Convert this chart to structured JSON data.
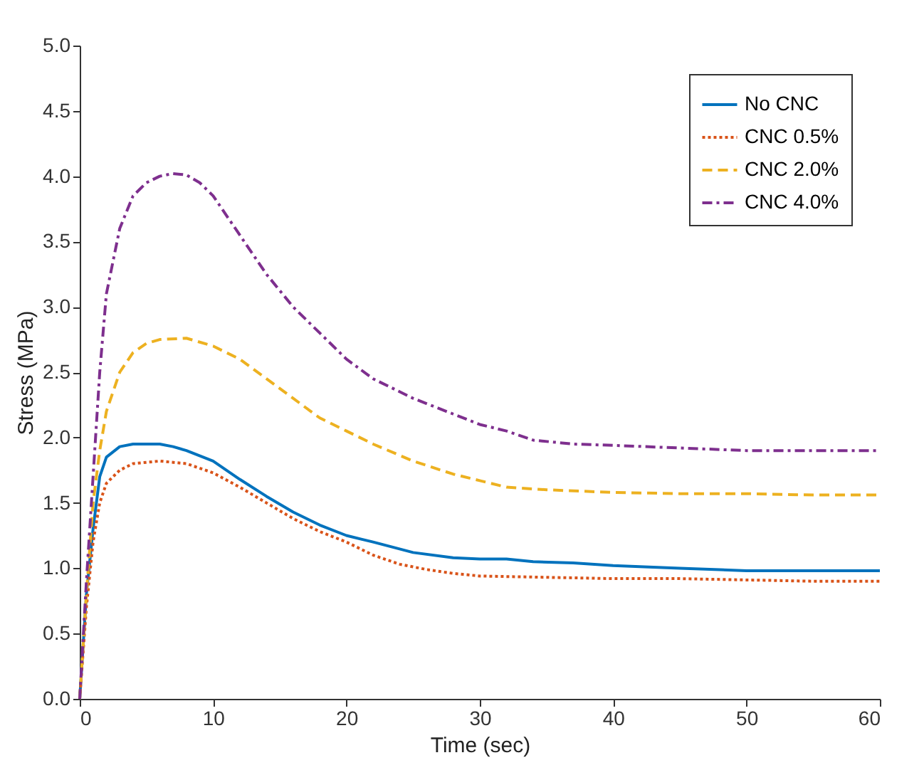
{
  "chart_data": {
    "type": "line",
    "xlabel": "Time (sec)",
    "ylabel": "Stress (MPa)",
    "xlim": [
      0,
      60
    ],
    "ylim": [
      0,
      5
    ],
    "xticks": [
      0,
      10,
      20,
      30,
      40,
      50,
      60
    ],
    "yticks": [
      {
        "value": 0,
        "label": "0.0"
      },
      {
        "value": 0.5,
        "label": "0.5"
      },
      {
        "value": 1,
        "label": "1.0"
      },
      {
        "value": 1.5,
        "label": "1.5"
      },
      {
        "value": 2,
        "label": "2.0"
      },
      {
        "value": 2.5,
        "label": "2.5"
      },
      {
        "value": 3,
        "label": "3.0"
      },
      {
        "value": 3.5,
        "label": "3.5"
      },
      {
        "value": 4,
        "label": "4.0"
      },
      {
        "value": 4.5,
        "label": "4.5"
      },
      {
        "value": 5,
        "label": "5.0"
      }
    ],
    "grid": false,
    "legend": "top right",
    "series": [
      {
        "name": "No CNC",
        "color": "#0072bd",
        "line_style": "solid",
        "x": [
          0,
          0.5,
          1,
          1.5,
          2,
          3,
          4,
          6,
          7,
          8,
          10,
          12,
          14,
          16,
          18,
          20,
          22,
          25,
          28,
          30,
          32,
          34,
          37,
          40,
          45,
          50,
          55,
          60
        ],
        "values": [
          0,
          0.8,
          1.3,
          1.7,
          1.85,
          1.93,
          1.95,
          1.95,
          1.93,
          1.9,
          1.82,
          1.68,
          1.55,
          1.43,
          1.33,
          1.25,
          1.2,
          1.12,
          1.08,
          1.07,
          1.07,
          1.05,
          1.04,
          1.02,
          1.0,
          0.98,
          0.98,
          0.98
        ]
      },
      {
        "name": "CNC 0.5%",
        "color": "#d95319",
        "line_style": "dotted",
        "x": [
          0,
          0.5,
          1,
          1.5,
          2,
          3,
          4,
          6,
          8,
          10,
          12,
          14,
          16,
          18,
          20,
          22,
          24,
          26,
          28,
          30,
          35,
          40,
          45,
          50,
          55,
          60
        ],
        "values": [
          0,
          0.7,
          1.2,
          1.5,
          1.65,
          1.75,
          1.8,
          1.82,
          1.8,
          1.73,
          1.62,
          1.5,
          1.38,
          1.28,
          1.2,
          1.1,
          1.03,
          0.99,
          0.96,
          0.94,
          0.93,
          0.92,
          0.92,
          0.91,
          0.9,
          0.9
        ]
      },
      {
        "name": "CNC 2.0%",
        "color": "#edb120",
        "line_style": "dashed",
        "x": [
          0,
          0.5,
          1,
          1.5,
          2,
          3,
          4,
          5,
          6,
          8,
          10,
          12,
          14,
          16,
          18,
          20,
          22,
          25,
          28,
          30,
          32,
          35,
          40,
          45,
          50,
          55,
          60
        ],
        "values": [
          0,
          0.8,
          1.5,
          1.9,
          2.2,
          2.5,
          2.65,
          2.72,
          2.75,
          2.76,
          2.7,
          2.6,
          2.45,
          2.3,
          2.15,
          2.05,
          1.95,
          1.82,
          1.72,
          1.67,
          1.62,
          1.6,
          1.58,
          1.57,
          1.57,
          1.56,
          1.56
        ]
      },
      {
        "name": "CNC 4.0%",
        "color": "#7e2f8e",
        "line_style": "dashdot",
        "x": [
          0,
          0.5,
          1,
          1.5,
          2,
          3,
          4,
          5,
          6,
          7,
          8,
          9,
          10,
          12,
          14,
          16,
          18,
          20,
          22,
          25,
          28,
          30,
          32,
          34,
          37,
          40,
          45,
          50,
          55,
          60
        ],
        "values": [
          0,
          0.9,
          1.7,
          2.5,
          3.1,
          3.6,
          3.85,
          3.95,
          4.0,
          4.02,
          4.01,
          3.95,
          3.85,
          3.55,
          3.25,
          3.0,
          2.8,
          2.6,
          2.45,
          2.3,
          2.18,
          2.1,
          2.05,
          1.98,
          1.95,
          1.94,
          1.92,
          1.9,
          1.9,
          1.9
        ]
      }
    ]
  }
}
